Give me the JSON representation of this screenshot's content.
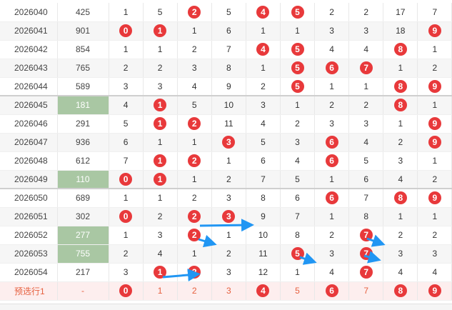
{
  "rows": [
    {
      "period": "2026040",
      "value": "425",
      "hl": false,
      "cells": [
        {
          "t": "1",
          "b": false
        },
        {
          "t": "5",
          "b": false
        },
        {
          "t": "2",
          "b": true
        },
        {
          "t": "5",
          "b": false
        },
        {
          "t": "4",
          "b": true
        },
        {
          "t": "5",
          "b": true
        },
        {
          "t": "2",
          "b": false
        },
        {
          "t": "2",
          "b": false
        },
        {
          "t": "17",
          "b": false
        },
        {
          "t": "7",
          "b": false
        }
      ]
    },
    {
      "period": "2026041",
      "value": "901",
      "hl": false,
      "cells": [
        {
          "t": "0",
          "b": true
        },
        {
          "t": "1",
          "b": true
        },
        {
          "t": "1",
          "b": false
        },
        {
          "t": "6",
          "b": false
        },
        {
          "t": "1",
          "b": false
        },
        {
          "t": "1",
          "b": false
        },
        {
          "t": "3",
          "b": false
        },
        {
          "t": "3",
          "b": false
        },
        {
          "t": "18",
          "b": false
        },
        {
          "t": "9",
          "b": true
        }
      ]
    },
    {
      "period": "2026042",
      "value": "854",
      "hl": false,
      "cells": [
        {
          "t": "1",
          "b": false
        },
        {
          "t": "1",
          "b": false
        },
        {
          "t": "2",
          "b": false
        },
        {
          "t": "7",
          "b": false
        },
        {
          "t": "4",
          "b": true
        },
        {
          "t": "5",
          "b": true
        },
        {
          "t": "4",
          "b": false
        },
        {
          "t": "4",
          "b": false
        },
        {
          "t": "8",
          "b": true
        },
        {
          "t": "1",
          "b": false
        }
      ]
    },
    {
      "period": "2026043",
      "value": "765",
      "hl": false,
      "cells": [
        {
          "t": "2",
          "b": false
        },
        {
          "t": "2",
          "b": false
        },
        {
          "t": "3",
          "b": false
        },
        {
          "t": "8",
          "b": false
        },
        {
          "t": "1",
          "b": false
        },
        {
          "t": "5",
          "b": true
        },
        {
          "t": "6",
          "b": true
        },
        {
          "t": "7",
          "b": true
        },
        {
          "t": "1",
          "b": false
        },
        {
          "t": "2",
          "b": false
        }
      ]
    },
    {
      "period": "2026044",
      "value": "589",
      "hl": false,
      "cells": [
        {
          "t": "3",
          "b": false
        },
        {
          "t": "3",
          "b": false
        },
        {
          "t": "4",
          "b": false
        },
        {
          "t": "9",
          "b": false
        },
        {
          "t": "2",
          "b": false
        },
        {
          "t": "5",
          "b": true
        },
        {
          "t": "1",
          "b": false
        },
        {
          "t": "1",
          "b": false
        },
        {
          "t": "8",
          "b": true
        },
        {
          "t": "9",
          "b": true
        }
      ]
    },
    {
      "period": "2026045",
      "value": "181",
      "hl": true,
      "cells": [
        {
          "t": "4",
          "b": false
        },
        {
          "t": "1",
          "b": true
        },
        {
          "t": "5",
          "b": false
        },
        {
          "t": "10",
          "b": false
        },
        {
          "t": "3",
          "b": false
        },
        {
          "t": "1",
          "b": false
        },
        {
          "t": "2",
          "b": false
        },
        {
          "t": "2",
          "b": false
        },
        {
          "t": "8",
          "b": true
        },
        {
          "t": "1",
          "b": false
        }
      ]
    },
    {
      "period": "2026046",
      "value": "291",
      "hl": false,
      "cells": [
        {
          "t": "5",
          "b": false
        },
        {
          "t": "1",
          "b": true
        },
        {
          "t": "2",
          "b": true
        },
        {
          "t": "11",
          "b": false
        },
        {
          "t": "4",
          "b": false
        },
        {
          "t": "2",
          "b": false
        },
        {
          "t": "3",
          "b": false
        },
        {
          "t": "3",
          "b": false
        },
        {
          "t": "1",
          "b": false
        },
        {
          "t": "9",
          "b": true
        }
      ]
    },
    {
      "period": "2026047",
      "value": "936",
      "hl": false,
      "cells": [
        {
          "t": "6",
          "b": false
        },
        {
          "t": "1",
          "b": false
        },
        {
          "t": "1",
          "b": false
        },
        {
          "t": "3",
          "b": true
        },
        {
          "t": "5",
          "b": false
        },
        {
          "t": "3",
          "b": false
        },
        {
          "t": "6",
          "b": true
        },
        {
          "t": "4",
          "b": false
        },
        {
          "t": "2",
          "b": false
        },
        {
          "t": "9",
          "b": true
        }
      ]
    },
    {
      "period": "2026048",
      "value": "612",
      "hl": false,
      "cells": [
        {
          "t": "7",
          "b": false
        },
        {
          "t": "1",
          "b": true
        },
        {
          "t": "2",
          "b": true
        },
        {
          "t": "1",
          "b": false
        },
        {
          "t": "6",
          "b": false
        },
        {
          "t": "4",
          "b": false
        },
        {
          "t": "6",
          "b": true
        },
        {
          "t": "5",
          "b": false
        },
        {
          "t": "3",
          "b": false
        },
        {
          "t": "1",
          "b": false
        }
      ]
    },
    {
      "period": "2026049",
      "value": "110",
      "hl": true,
      "cells": [
        {
          "t": "0",
          "b": true
        },
        {
          "t": "1",
          "b": true
        },
        {
          "t": "1",
          "b": false
        },
        {
          "t": "2",
          "b": false
        },
        {
          "t": "7",
          "b": false
        },
        {
          "t": "5",
          "b": false
        },
        {
          "t": "1",
          "b": false
        },
        {
          "t": "6",
          "b": false
        },
        {
          "t": "4",
          "b": false
        },
        {
          "t": "2",
          "b": false
        }
      ]
    },
    {
      "period": "2026050",
      "value": "689",
      "hl": false,
      "cells": [
        {
          "t": "1",
          "b": false
        },
        {
          "t": "1",
          "b": false
        },
        {
          "t": "2",
          "b": false
        },
        {
          "t": "3",
          "b": false
        },
        {
          "t": "8",
          "b": false
        },
        {
          "t": "6",
          "b": false
        },
        {
          "t": "6",
          "b": true
        },
        {
          "t": "7",
          "b": false
        },
        {
          "t": "8",
          "b": true
        },
        {
          "t": "9",
          "b": true
        }
      ]
    },
    {
      "period": "2026051",
      "value": "302",
      "hl": false,
      "cells": [
        {
          "t": "0",
          "b": true
        },
        {
          "t": "2",
          "b": false
        },
        {
          "t": "2",
          "b": true
        },
        {
          "t": "3",
          "b": true
        },
        {
          "t": "9",
          "b": false
        },
        {
          "t": "7",
          "b": false
        },
        {
          "t": "1",
          "b": false
        },
        {
          "t": "8",
          "b": false
        },
        {
          "t": "1",
          "b": false
        },
        {
          "t": "1",
          "b": false
        }
      ]
    },
    {
      "period": "2026052",
      "value": "277",
      "hl": true,
      "cells": [
        {
          "t": "1",
          "b": false
        },
        {
          "t": "3",
          "b": false
        },
        {
          "t": "2",
          "b": true
        },
        {
          "t": "1",
          "b": false
        },
        {
          "t": "10",
          "b": false
        },
        {
          "t": "8",
          "b": false
        },
        {
          "t": "2",
          "b": false
        },
        {
          "t": "7",
          "b": true
        },
        {
          "t": "2",
          "b": false
        },
        {
          "t": "2",
          "b": false
        }
      ]
    },
    {
      "period": "2026053",
      "value": "755",
      "hl": true,
      "cells": [
        {
          "t": "2",
          "b": false
        },
        {
          "t": "4",
          "b": false
        },
        {
          "t": "1",
          "b": false
        },
        {
          "t": "2",
          "b": false
        },
        {
          "t": "11",
          "b": false
        },
        {
          "t": "5",
          "b": true
        },
        {
          "t": "3",
          "b": false
        },
        {
          "t": "7",
          "b": true
        },
        {
          "t": "3",
          "b": false
        },
        {
          "t": "3",
          "b": false
        }
      ]
    },
    {
      "period": "2026054",
      "value": "217",
      "hl": false,
      "cells": [
        {
          "t": "3",
          "b": false
        },
        {
          "t": "1",
          "b": true
        },
        {
          "t": "2",
          "b": true
        },
        {
          "t": "3",
          "b": false
        },
        {
          "t": "12",
          "b": false
        },
        {
          "t": "1",
          "b": false
        },
        {
          "t": "4",
          "b": false
        },
        {
          "t": "7",
          "b": true
        },
        {
          "t": "4",
          "b": false
        },
        {
          "t": "4",
          "b": false
        }
      ]
    }
  ],
  "prediction": {
    "label": "预选行1",
    "value": "-",
    "cells": [
      {
        "t": "0",
        "b": true
      },
      {
        "t": "1",
        "b": false
      },
      {
        "t": "2",
        "b": false
      },
      {
        "t": "3",
        "b": false
      },
      {
        "t": "4",
        "b": true
      },
      {
        "t": "5",
        "b": false
      },
      {
        "t": "6",
        "b": true
      },
      {
        "t": "7",
        "b": false
      },
      {
        "t": "8",
        "b": true
      },
      {
        "t": "9",
        "b": true
      }
    ]
  },
  "colors": {
    "ball": "#e8393b",
    "highlight": "#a9c7a3",
    "arrow": "#2196f3",
    "prediction_text": "#e6603f",
    "prediction_bg": "#fdeeee"
  }
}
